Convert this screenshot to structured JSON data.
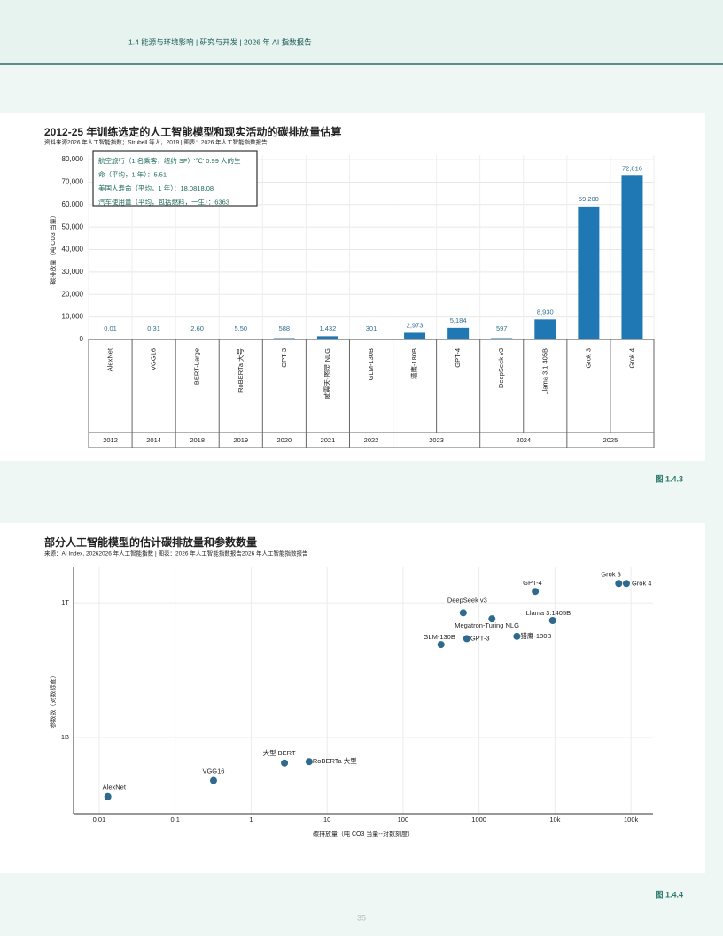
{
  "header": "1.4 能源与环境影响 | 研究与开发 | 2026 年 AI 指数报告",
  "chart_data": [
    {
      "type": "bar",
      "title": "2012-25 年训练选定的人工智能模型和现实活动的碳排放量估算",
      "subtitle": "资料来源2026 年人工智能指数；Strubell 等人，2019 | 图表：2026 年人工智能指数报告",
      "y_label": "碳排放量（吨 CO3 当量）",
      "categories": [
        "AlexNet",
        "VGG16",
        "BERT-Large",
        "RoBERTa 大号",
        "GPT-3",
        "威震天-图灵 NLG",
        "GLM-130B",
        "猎鹰-180B",
        "GPT-4",
        "DeepSeek v3",
        "Llama 3.1 405B",
        "Grok 3",
        "Grok 4"
      ],
      "groups": [
        "2012",
        "2014",
        "2018",
        "2019",
        "2020",
        "2021",
        "2022",
        "2023",
        null,
        "2024",
        null,
        "2025",
        null
      ],
      "values": [
        0.01,
        0.31,
        2.6,
        5.5,
        588,
        1432,
        301,
        2973,
        5184,
        597,
        8930,
        59200,
        72816
      ],
      "value_labels": [
        "0.01",
        "0.31",
        "2.60",
        "5.50",
        "588",
        "1,432",
        "301",
        "2,973",
        "5,184",
        "597",
        "8,930",
        "59,200",
        "72,816"
      ],
      "color": "#1f77b4",
      "ylim": [
        0,
        82000
      ],
      "yticks": [
        0,
        {
          "value": 10000,
          "label": "10,000"
        },
        {
          "value": 20000,
          "label": "20,000"
        },
        {
          "value": 30000,
          "label": "30,000"
        },
        {
          "value": 40000,
          "label": "40,000"
        },
        {
          "value": 50000,
          "label": "50,000"
        },
        {
          "value": 60000,
          "label": "60,000"
        },
        {
          "value": 70000,
          "label": "70,000"
        },
        {
          "value": 80000,
          "label": "80,000"
        }
      ],
      "grid": true,
      "annotations": [
        "航空旅行（1 名乘客，纽约 SF）'℃' 0.99 人的生",
        "命（平均，1 年）：5.51",
        "美国人寿命（平均，1 年）：18.0818.08",
        "汽车使用量（平均，包括燃料，一生）：6363"
      ]
    },
    {
      "type": "scatter",
      "title": "部分人工智能模型的估计碳排放量和参数数量",
      "subtitle": "来源：AI Index, 20262026 年人工智能指数 | 图表：2026 年人工智能指数报告2026 年人工智能指数报告",
      "x_label": "碳排放量（吨 CO3 当量--对数刻度）",
      "y_label": "参数数（对数标度）",
      "labels": [
        "AlexNet",
        "VGG16",
        "大型 BERT",
        "RoBERTa 大型",
        "GLM-130B",
        "GPT-3",
        "DeepSeek v3",
        "Megatron-Turing NLG",
        "猎鹰-180B",
        "Llama 3.1405B",
        "GPT-4",
        "Grok 3",
        "Grok 4"
      ],
      "x": [
        0.013,
        0.32,
        2.75,
        5.8,
        316,
        690,
        620,
        1480,
        3150,
        9300,
        5500,
        69000,
        87000
      ],
      "values": [
        48000000,
        110000000,
        270000000,
        290000000,
        118000000000,
        160000000000,
        600000000000,
        440000000000,
        180000000000,
        405000000000,
        1800000000000,
        2700000000000,
        2700000000000
      ],
      "color": "#2e6a8e",
      "log_x": true,
      "log_y": true,
      "xlim": [
        0.0046,
        195000
      ],
      "ylim": [
        20000000,
        6200000000000
      ],
      "xticks": [
        0.01,
        0.1,
        1,
        10,
        100,
        1000,
        {
          "value": 10000,
          "label": "10k"
        },
        {
          "value": 100000,
          "label": "100k"
        }
      ],
      "yticks": [
        {
          "value": 1000000000,
          "label": "1B"
        },
        {
          "value": 1000000000000,
          "label": "1T"
        }
      ],
      "grid": true
    }
  ],
  "figure_labels": [
    "图 1.4.3",
    "图 1.4.4"
  ],
  "page_number": "35"
}
